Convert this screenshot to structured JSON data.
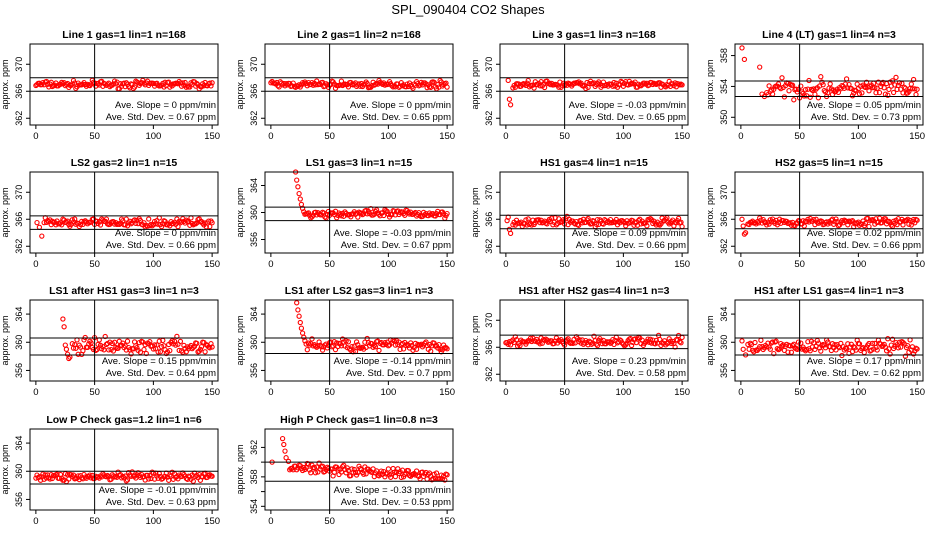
{
  "title": "SPL_090404  CO2 Shapes",
  "chart_data": [
    {
      "type": "scatter",
      "title": "Line 1 gas=1 lin=1 n=168",
      "ylabel": "approx. ppm",
      "xlim": [
        -5,
        155
      ],
      "ylim": [
        361,
        373
      ],
      "xticks": [
        0,
        50,
        100,
        150
      ],
      "yticks": [
        362,
        366,
        370
      ],
      "xticklabels": [
        "0",
        "50",
        "100",
        "150"
      ],
      "yticklabels": [
        "362",
        "366",
        "370"
      ],
      "hlines": [
        368.0,
        366.0
      ],
      "vline": 50,
      "series": {
        "start": [],
        "base": 367.0,
        "noise": 0.25,
        "n": 150
      },
      "annotations": [
        "Ave. Slope =  0 ppm/min",
        "Ave. Std. Dev. =  0.67 ppm"
      ]
    },
    {
      "type": "scatter",
      "title": "Line 2 gas=1 lin=2 n=168",
      "ylabel": "approx. ppm",
      "xlim": [
        -5,
        155
      ],
      "ylim": [
        361,
        373
      ],
      "xticks": [
        0,
        50,
        100,
        150
      ],
      "yticks": [
        362,
        366,
        370
      ],
      "xticklabels": [
        "0",
        "50",
        "100",
        "150"
      ],
      "yticklabels": [
        "362",
        "366",
        "370"
      ],
      "hlines": [
        368.0,
        366.0
      ],
      "vline": 50,
      "series": {
        "start": [],
        "base": 367.0,
        "noise": 0.25,
        "n": 150
      },
      "annotations": [
        "Ave. Slope =  0 ppm/min",
        "Ave. Std. Dev. =  0.65 ppm"
      ]
    },
    {
      "type": "scatter",
      "title": "Line 3 gas=1 lin=3 n=168",
      "ylabel": "approx. ppm",
      "xlim": [
        -5,
        155
      ],
      "ylim": [
        361,
        373
      ],
      "xticks": [
        0,
        50,
        100,
        150
      ],
      "yticks": [
        362,
        366,
        370
      ],
      "xticklabels": [
        "0",
        "50",
        "100",
        "150"
      ],
      "yticklabels": [
        "362",
        "366",
        "370"
      ],
      "hlines": [
        368.0,
        366.0
      ],
      "vline": 50,
      "series": {
        "start": [
          [
            2,
            367.6
          ],
          [
            3,
            364.8
          ],
          [
            4,
            364.0
          ],
          [
            6,
            366.5
          ]
        ],
        "base": 367.0,
        "noise": 0.25,
        "n": 150
      },
      "annotations": [
        "Ave. Slope =  -0.03 ppm/min",
        "Ave. Std. Dev. =  0.65 ppm"
      ]
    },
    {
      "type": "scatter",
      "title": "Line 4 (LT) gas=1 lin=4 n=3",
      "ylabel": "approx. ppm",
      "xlim": [
        -5,
        155
      ],
      "ylim": [
        349,
        359.5
      ],
      "xticks": [
        0,
        50,
        100,
        150
      ],
      "yticks": [
        350,
        354,
        358
      ],
      "xticklabels": [
        "0",
        "50",
        "100",
        "150"
      ],
      "yticklabels": [
        "350",
        "354",
        "358"
      ],
      "hlines": [
        354.7,
        352.7
      ],
      "vline": 50,
      "series": {
        "start": [
          [
            1,
            359.0
          ],
          [
            3,
            357.5
          ],
          [
            16,
            356.5
          ],
          [
            18,
            353.0
          ],
          [
            20,
            352.7
          ],
          [
            22,
            353.2
          ]
        ],
        "base": 353.7,
        "noise": 0.6,
        "n": 150
      },
      "annotations": [
        "Ave. Slope =  0.05 ppm/min",
        "Ave. Std. Dev. =  0.73 ppm"
      ]
    },
    {
      "type": "scatter",
      "title": "LS2 gas=2 lin=1 n=15",
      "ylabel": "approx. ppm",
      "xlim": [
        -5,
        155
      ],
      "ylim": [
        361,
        373
      ],
      "xticks": [
        0,
        50,
        100,
        150
      ],
      "yticks": [
        362,
        366,
        370
      ],
      "xticklabels": [
        "0",
        "50",
        "100",
        "150"
      ],
      "yticklabels": [
        "362",
        "366",
        "370"
      ],
      "hlines": [
        366.5,
        364.5
      ],
      "vline": 50,
      "series": {
        "start": [
          [
            1,
            365.5
          ],
          [
            3,
            364.8
          ],
          [
            5,
            363.5
          ],
          [
            7,
            365.5
          ]
        ],
        "base": 365.5,
        "noise": 0.3,
        "n": 150
      },
      "annotations": [
        "Ave. Slope =  0 ppm/min",
        "Ave. Std. Dev. =  0.66 ppm"
      ]
    },
    {
      "type": "scatter",
      "title": "LS1 gas=3 lin=1 n=15",
      "ylabel": "approx. ppm",
      "xlim": [
        -5,
        155
      ],
      "ylim": [
        354,
        366
      ],
      "xticks": [
        0,
        50,
        100,
        150
      ],
      "yticks": [
        356,
        360,
        364
      ],
      "xticklabels": [
        "0",
        "50",
        "100",
        "150"
      ],
      "yticklabels": [
        "356",
        "360",
        "364"
      ],
      "hlines": [
        360.8,
        358.8
      ],
      "vline": 50,
      "series": {
        "start": [
          [
            21,
            366.0
          ],
          [
            22,
            364.8
          ],
          [
            23,
            363.8
          ],
          [
            24,
            362.8
          ],
          [
            25,
            362.0
          ],
          [
            26,
            361.2
          ],
          [
            27,
            360.6
          ],
          [
            28,
            360.1
          ]
        ],
        "base": 359.8,
        "noise": 0.3,
        "n": 150
      },
      "annotations": [
        "Ave. Slope =  -0.03 ppm/min",
        "Ave. Std. Dev. =  0.67 ppm"
      ]
    },
    {
      "type": "scatter",
      "title": "HS1 gas=4 lin=1 n=15",
      "ylabel": "approx. ppm",
      "xlim": [
        -5,
        155
      ],
      "ylim": [
        361,
        373
      ],
      "xticks": [
        0,
        50,
        100,
        150
      ],
      "yticks": [
        362,
        366,
        370
      ],
      "xticklabels": [
        "0",
        "50",
        "100",
        "150"
      ],
      "yticklabels": [
        "362",
        "366",
        "370"
      ],
      "hlines": [
        366.6,
        364.6
      ],
      "vline": 50,
      "series": {
        "start": [
          [
            1,
            365.8
          ],
          [
            2,
            366.3
          ],
          [
            3,
            364.5
          ],
          [
            4,
            363.9
          ],
          [
            6,
            365.2
          ]
        ],
        "base": 365.6,
        "noise": 0.3,
        "n": 150
      },
      "annotations": [
        "Ave. Slope =  0.09 ppm/min",
        "Ave. Std. Dev. =  0.66 ppm"
      ]
    },
    {
      "type": "scatter",
      "title": "HS2 gas=5 lin=1 n=15",
      "ylabel": "approx. ppm",
      "xlim": [
        -5,
        155
      ],
      "ylim": [
        361,
        373
      ],
      "xticks": [
        0,
        50,
        100,
        150
      ],
      "yticks": [
        362,
        366,
        370
      ],
      "xticklabels": [
        "0",
        "50",
        "100",
        "150"
      ],
      "yticklabels": [
        "362",
        "366",
        "370"
      ],
      "hlines": [
        366.6,
        364.6
      ],
      "vline": 50,
      "series": {
        "start": [
          [
            1,
            366.0
          ],
          [
            2,
            365.0
          ],
          [
            3,
            363.8
          ],
          [
            4,
            364.0
          ],
          [
            6,
            365.3
          ]
        ],
        "base": 365.6,
        "noise": 0.3,
        "n": 150
      },
      "annotations": [
        "Ave. Slope =  0.02 ppm/min",
        "Ave. Std. Dev. =  0.66 ppm"
      ]
    },
    {
      "type": "scatter",
      "title": "LS1 after HS1 gas=3 lin=1 n=3",
      "ylabel": "approx. ppm",
      "xlim": [
        -5,
        155
      ],
      "ylim": [
        354.5,
        366
      ],
      "xticks": [
        0,
        50,
        100,
        150
      ],
      "yticks": [
        356,
        360,
        364
      ],
      "xticklabels": [
        "0",
        "50",
        "100",
        "150"
      ],
      "yticklabels": [
        "356",
        "360",
        "364"
      ],
      "hlines": [
        360.6,
        358.2
      ],
      "vline": 50,
      "series": {
        "start": [
          [
            23,
            363.3
          ],
          [
            24,
            362.2
          ],
          [
            25,
            359.6
          ],
          [
            26,
            359.0
          ],
          [
            27,
            358.3
          ],
          [
            28,
            357.7
          ],
          [
            29,
            357.9
          ],
          [
            31,
            359.8
          ]
        ],
        "base": 359.4,
        "noise": 0.55,
        "n": 150
      },
      "annotations": [
        "Ave. Slope =  0.15 ppm/min",
        "Ave. Std. Dev. =  0.64 ppm"
      ]
    },
    {
      "type": "scatter",
      "title": "LS1 after LS2 gas=3 lin=1 n=3",
      "ylabel": "approx. ppm",
      "xlim": [
        -5,
        155
      ],
      "ylim": [
        354.5,
        366
      ],
      "xticks": [
        0,
        50,
        100,
        150
      ],
      "yticks": [
        356,
        360,
        364
      ],
      "xticklabels": [
        "0",
        "50",
        "100",
        "150"
      ],
      "yticklabels": [
        "356",
        "360",
        "364"
      ],
      "hlines": [
        360.6,
        358.4
      ],
      "vline": 50,
      "series": {
        "start": [
          [
            22,
            365.6
          ],
          [
            23,
            364.6
          ],
          [
            24,
            363.7
          ],
          [
            25,
            362.8
          ],
          [
            26,
            362.0
          ],
          [
            27,
            361.3
          ],
          [
            28,
            360.7
          ],
          [
            29,
            360.2
          ]
        ],
        "base": 359.6,
        "noise": 0.45,
        "n": 150
      },
      "annotations": [
        "Ave. Slope =  -0.14 ppm/min",
        "Ave. Std. Dev. =  0.7 ppm"
      ]
    },
    {
      "type": "scatter",
      "title": "HS1 after HS2 gas=4 lin=1 n=3",
      "ylabel": "approx. ppm",
      "xlim": [
        -5,
        155
      ],
      "ylim": [
        361,
        373
      ],
      "xticks": [
        0,
        50,
        100,
        150
      ],
      "yticks": [
        362,
        366,
        370
      ],
      "xticklabels": [
        "0",
        "50",
        "100",
        "150"
      ],
      "yticklabels": [
        "362",
        "366",
        "370"
      ],
      "hlines": [
        367.8,
        365.8
      ],
      "vline": 50,
      "series": {
        "start": [],
        "base": 366.8,
        "noise": 0.35,
        "n": 150
      },
      "annotations": [
        "Ave. Slope =  0.23 ppm/min",
        "Ave. Std. Dev. =  0.58 ppm"
      ]
    },
    {
      "type": "scatter",
      "title": "HS1 after LS1 gas=4 lin=1 n=3",
      "ylabel": "approx. ppm",
      "xlim": [
        -5,
        155
      ],
      "ylim": [
        354.5,
        366
      ],
      "xticks": [
        0,
        50,
        100,
        150
      ],
      "yticks": [
        356,
        360,
        364
      ],
      "xticklabels": [
        "0",
        "50",
        "100",
        "150"
      ],
      "yticklabels": [
        "356",
        "360",
        "364"
      ],
      "hlines": [
        360.6,
        358.2
      ],
      "vline": 50,
      "series": {
        "start": [
          [
            1,
            360.2
          ],
          [
            2,
            359.0
          ],
          [
            4,
            358.2
          ],
          [
            6,
            359.7
          ]
        ],
        "base": 359.4,
        "noise": 0.5,
        "n": 150
      },
      "annotations": [
        "Ave. Slope =  0.17 ppm/min",
        "Ave. Std. Dev. =  0.62 ppm"
      ]
    },
    {
      "type": "scatter",
      "title": "Low P Check gas=1.2 lin=1 n=6",
      "ylabel": "approx. ppm",
      "xlim": [
        -5,
        155
      ],
      "ylim": [
        354.5,
        366
      ],
      "xticks": [
        0,
        50,
        100,
        150
      ],
      "yticks": [
        356,
        360,
        364
      ],
      "xticklabels": [
        "0",
        "50",
        "100",
        "150"
      ],
      "yticklabels": [
        "356",
        "360",
        "364"
      ],
      "hlines": [
        360.0,
        358.2
      ],
      "vline": 50,
      "series": {
        "start": [],
        "base": 359.2,
        "noise": 0.3,
        "n": 150
      },
      "annotations": [
        "Ave. Slope =  -0.01 ppm/min",
        "Ave. Std. Dev. =  0.63 ppm"
      ]
    },
    {
      "type": "scatter",
      "title": "High P Check gas=1 lin=0.8 n=3",
      "ylabel": "approx. ppm",
      "xlim": [
        -5,
        155
      ],
      "ylim": [
        353.5,
        364.5
      ],
      "xticks": [
        0,
        50,
        100,
        150
      ],
      "yticks": [
        354,
        356,
        358,
        360,
        362
      ],
      "xticklabels": [
        "0",
        "50",
        "100",
        "150"
      ],
      "yticklabels": [
        "354",
        "",
        "358",
        "",
        "362"
      ],
      "hlines": [
        360.0,
        357.4
      ],
      "vline": 50,
      "series": {
        "start": [
          [
            1,
            360.0
          ],
          [
            10,
            363.2
          ],
          [
            11,
            362.4
          ],
          [
            12,
            361.5
          ],
          [
            13,
            360.6
          ],
          [
            15,
            360.1
          ]
        ],
        "base": 359.6,
        "drift": -1.6,
        "noise": 0.35,
        "n": 150
      },
      "annotations": [
        "Ave. Slope =  -0.33 ppm/min",
        "Ave. Std. Dev. =  0.53 ppm"
      ]
    }
  ]
}
